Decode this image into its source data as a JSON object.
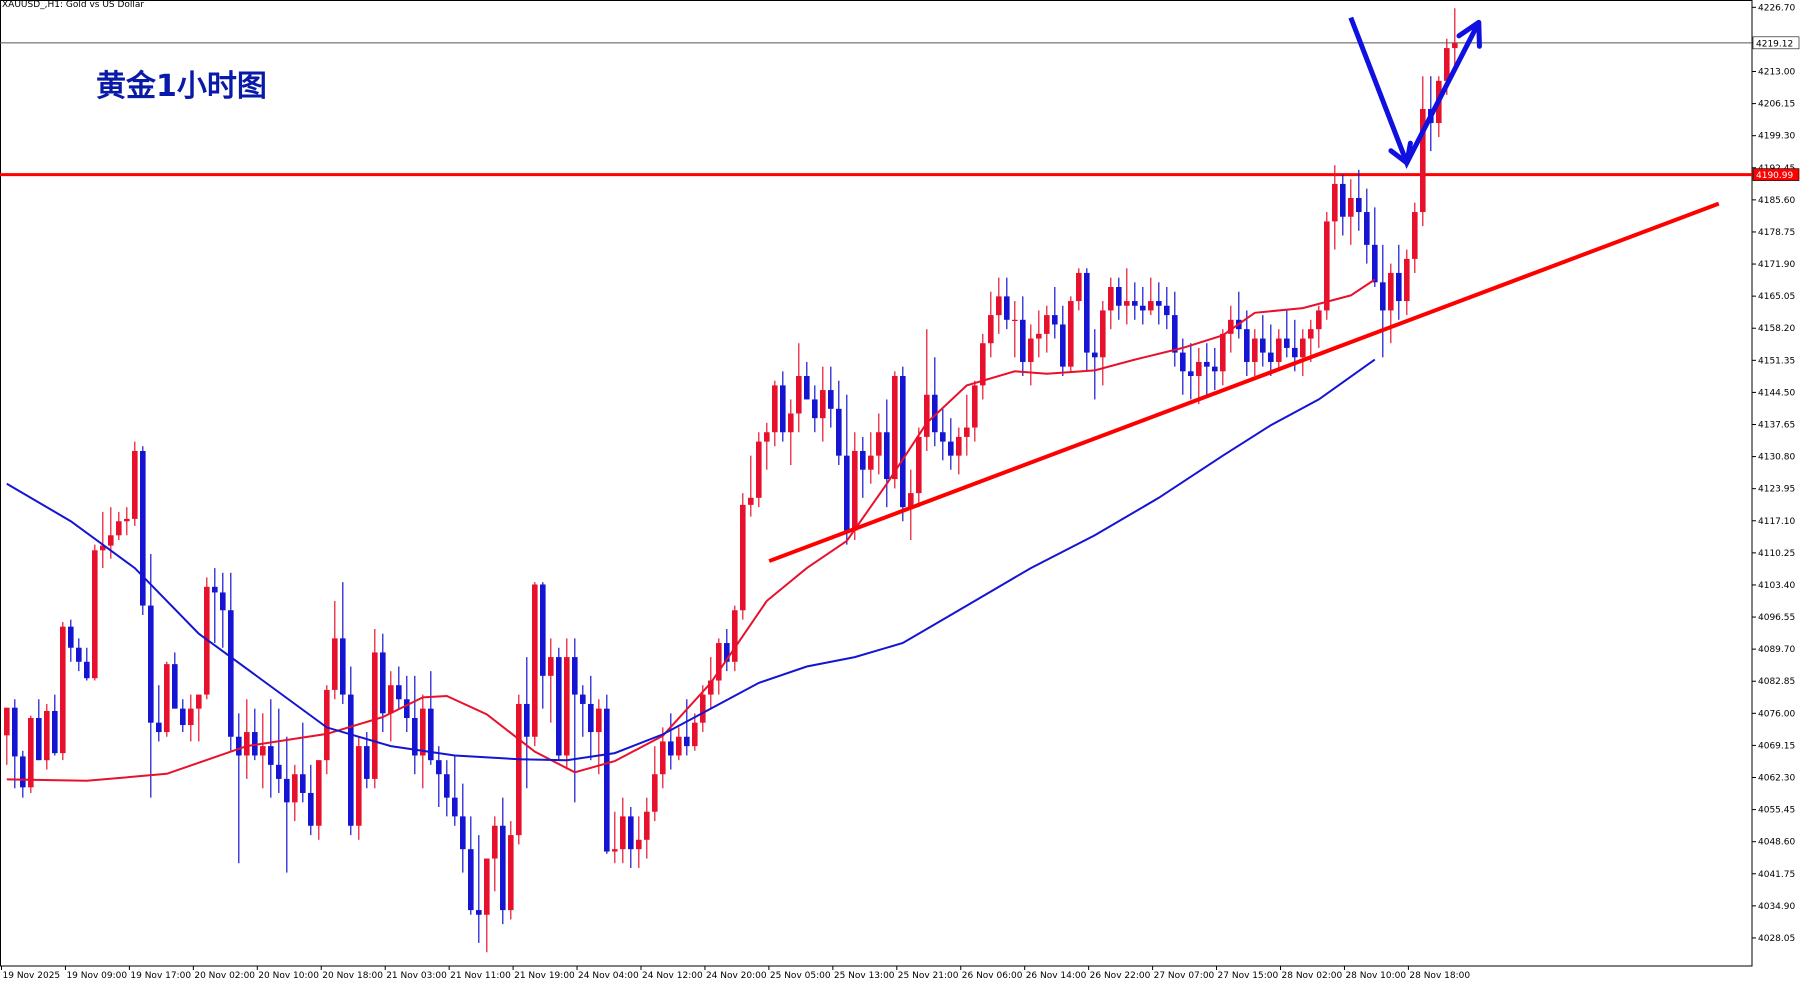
{
  "header": {
    "symbol": "XAUUSD_",
    "timeframe": "H1",
    "description": "XAUUSD_,H1:  Gold vs US Dollar"
  },
  "annotation_title": "黄金1小时图",
  "colors": {
    "bull_candle": "#e8112d",
    "bear_candle": "#1414d2",
    "ma_fast": "#e8112d",
    "ma_slow": "#1414d2",
    "resistance_line": "#ff0000",
    "trend_line": "#ff0000",
    "arrow": "#1010e0",
    "title": "#0a1aa8",
    "crosshair": "#555555"
  },
  "chart_data": {
    "type": "candlestick",
    "symbol": "XAUUSD_",
    "timeframe": "H1",
    "ylim": [
      4024.0,
      4227.4
    ],
    "y_ticks": [
      "4226.70",
      "4219.12",
      "4213.00",
      "4206.15",
      "4199.30",
      "4192.45",
      "4185.60",
      "4178.75",
      "4171.90",
      "4165.05",
      "4158.20",
      "4151.35",
      "4144.50",
      "4137.65",
      "4130.80",
      "4123.95",
      "4117.10",
      "4110.25",
      "4103.40",
      "4096.55",
      "4089.70",
      "4082.85",
      "4076.00",
      "4069.15",
      "4062.30",
      "4055.45",
      "4048.60",
      "4041.75",
      "4034.90",
      "4028.05"
    ],
    "x_ticks": [
      "19 Nov 2025",
      "19 Nov 09:00",
      "19 Nov 17:00",
      "20 Nov 02:00",
      "20 Nov 10:00",
      "20 Nov 18:00",
      "21 Nov 03:00",
      "21 Nov 11:00",
      "21 Nov 19:00",
      "24 Nov 04:00",
      "24 Nov 12:00",
      "24 Nov 20:00",
      "25 Nov 05:00",
      "25 Nov 13:00",
      "25 Nov 21:00",
      "26 Nov 06:00",
      "26 Nov 14:00",
      "26 Nov 22:00",
      "27 Nov 07:00",
      "27 Nov 15:00",
      "28 Nov 02:00",
      "28 Nov 10:00",
      "28 Nov 18:00"
    ],
    "current_price": {
      "value": 4219.12,
      "label": "4219.12"
    },
    "resistance_level": {
      "value": 4190.99,
      "label": "4190.99"
    },
    "candles": [
      [
        4071.3,
        4077.2,
        4065,
        4077.2
      ],
      [
        4077.2,
        4079,
        4060,
        4066.8
      ],
      [
        4066.8,
        4068,
        4058,
        4060.2
      ],
      [
        4060.2,
        4075.5,
        4059,
        4075
      ],
      [
        4075,
        4079,
        4066,
        4066
      ],
      [
        4066,
        4078,
        4064,
        4076.5
      ],
      [
        4076.5,
        4080,
        4067,
        4067.5
      ],
      [
        4067.5,
        4095.5,
        4066,
        4094.5
      ],
      [
        4094.5,
        4096,
        4087,
        4090
      ],
      [
        4090,
        4092,
        4085,
        4087
      ],
      [
        4087,
        4090,
        4083,
        4083.5
      ],
      [
        4083.5,
        4112,
        4083,
        4110.8
      ],
      [
        4110.8,
        4119,
        4107,
        4111.8
      ],
      [
        4111.8,
        4120,
        4109,
        4114
      ],
      [
        4114,
        4119,
        4113,
        4117
      ],
      [
        4117,
        4120,
        4114,
        4117.5
      ],
      [
        4117.5,
        4134,
        4116,
        4132
      ],
      [
        4132,
        4133,
        4097,
        4099
      ],
      [
        4099,
        4110,
        4058,
        4074
      ],
      [
        4074,
        4082,
        4070,
        4072
      ],
      [
        4072,
        4087,
        4071,
        4086.5
      ],
      [
        4086.5,
        4089,
        4077,
        4077
      ],
      [
        4077,
        4079,
        4072,
        4073.5
      ],
      [
        4073.5,
        4080,
        4070,
        4077
      ],
      [
        4077,
        4080,
        4070,
        4080
      ],
      [
        4080,
        4105,
        4079,
        4103
      ],
      [
        4103,
        4107,
        4091,
        4101.8
      ],
      [
        4101.8,
        4106,
        4090,
        4098
      ],
      [
        4098,
        4106,
        4068,
        4071
      ],
      [
        4071,
        4076,
        4044,
        4067
      ],
      [
        4067,
        4079,
        4062,
        4072
      ],
      [
        4072,
        4077,
        4066,
        4067
      ],
      [
        4067,
        4076,
        4060,
        4069
      ],
      [
        4069,
        4079,
        4058,
        4065
      ],
      [
        4065,
        4077,
        4059,
        4062
      ],
      [
        4062,
        4071,
        4042,
        4057
      ],
      [
        4057,
        4065,
        4053,
        4063
      ],
      [
        4063,
        4074,
        4057,
        4059
      ],
      [
        4059,
        4065,
        4050,
        4052
      ],
      [
        4052,
        4066,
        4049,
        4066
      ],
      [
        4066,
        4082,
        4063,
        4081
      ],
      [
        4081,
        4100,
        4079,
        4092
      ],
      [
        4092,
        4104,
        4078,
        4080
      ],
      [
        4080,
        4086,
        4050,
        4052
      ],
      [
        4052,
        4071,
        4049,
        4069
      ],
      [
        4069,
        4072,
        4060,
        4062
      ],
      [
        4062,
        4094,
        4060,
        4089
      ],
      [
        4089,
        4093,
        4072,
        4076
      ],
      [
        4076,
        4085,
        4070,
        4082
      ],
      [
        4082,
        4086,
        4077,
        4079
      ],
      [
        4079,
        4084,
        4072,
        4075
      ],
      [
        4075,
        4084,
        4063,
        4067
      ],
      [
        4067,
        4080,
        4060,
        4077
      ],
      [
        4077,
        4085,
        4065,
        4066
      ],
      [
        4066,
        4069,
        4056,
        4063
      ],
      [
        4063,
        4066,
        4054,
        4058
      ],
      [
        4058,
        4067,
        4052,
        4054
      ],
      [
        4054,
        4061,
        4042,
        4047
      ],
      [
        4047,
        4054,
        4033,
        4034
      ],
      [
        4034,
        4050,
        4027,
        4033
      ],
      [
        4033,
        4045,
        4025,
        4045
      ],
      [
        4045,
        4054,
        4038,
        4052
      ],
      [
        4052,
        4058,
        4031,
        4034
      ],
      [
        4034,
        4053,
        4032,
        4050
      ],
      [
        4050,
        4080,
        4048,
        4078
      ],
      [
        4078,
        4088,
        4060,
        4071
      ],
      [
        4071,
        4104,
        4069,
        4103.5
      ],
      [
        4103.5,
        4104,
        4077,
        4084
      ],
      [
        4084,
        4092,
        4074,
        4088
      ],
      [
        4088,
        4090,
        4066,
        4067
      ],
      [
        4067,
        4092,
        4064,
        4088
      ],
      [
        4088,
        4092,
        4057,
        4080
      ],
      [
        4080,
        4082,
        4071,
        4078
      ],
      [
        4078,
        4084,
        4066,
        4072
      ],
      [
        4072,
        4079,
        4063,
        4077
      ],
      [
        4077,
        4080,
        4046,
        4046.5
      ],
      [
        4046.5,
        4055,
        4044,
        4047
      ],
      [
        4047,
        4058,
        4044,
        4054
      ],
      [
        4054,
        4056,
        4043,
        4047
      ],
      [
        4047,
        4054,
        4043,
        4049
      ],
      [
        4049,
        4058,
        4045,
        4055
      ],
      [
        4055,
        4069,
        4053,
        4063
      ],
      [
        4063,
        4073,
        4060,
        4070
      ],
      [
        4070,
        4076,
        4064,
        4067
      ],
      [
        4067,
        4073,
        4066,
        4071
      ],
      [
        4071,
        4079,
        4067,
        4069
      ],
      [
        4069,
        4076,
        4068,
        4074
      ],
      [
        4074,
        4082,
        4072,
        4080
      ],
      [
        4080,
        4088,
        4077,
        4083
      ],
      [
        4083,
        4092,
        4080,
        4091
      ],
      [
        4091,
        4094,
        4085,
        4087
      ],
      [
        4087,
        4099,
        4085,
        4098
      ],
      [
        4098,
        4123,
        4096,
        4120.5
      ],
      [
        4120.5,
        4131,
        4118,
        4122
      ],
      [
        4122,
        4136,
        4120,
        4134
      ],
      [
        4134,
        4138,
        4128,
        4136
      ],
      [
        4136,
        4147,
        4133,
        4146
      ],
      [
        4146,
        4149,
        4134,
        4136
      ],
      [
        4136,
        4143,
        4129,
        4140
      ],
      [
        4140,
        4155,
        4136,
        4148
      ],
      [
        4148,
        4151,
        4143,
        4143
      ],
      [
        4143,
        4146,
        4136,
        4139
      ],
      [
        4139,
        4150,
        4134,
        4145
      ],
      [
        4145,
        4150,
        4137,
        4141
      ],
      [
        4141,
        4147,
        4129,
        4131
      ],
      [
        4131,
        4144,
        4112,
        4115
      ],
      [
        4115,
        4136,
        4113,
        4132
      ],
      [
        4132,
        4135,
        4122,
        4128
      ],
      [
        4128,
        4136,
        4125,
        4131
      ],
      [
        4131,
        4140,
        4127,
        4136
      ],
      [
        4136,
        4143,
        4120,
        4126
      ],
      [
        4126,
        4149,
        4124,
        4148
      ],
      [
        4148,
        4150,
        4117,
        4120
      ],
      [
        4120,
        4128,
        4113,
        4123
      ],
      [
        4123,
        4137,
        4120,
        4135
      ],
      [
        4135,
        4158,
        4132,
        4144
      ],
      [
        4144,
        4152,
        4133,
        4136
      ],
      [
        4136,
        4141,
        4130,
        4134
      ],
      [
        4134,
        4139,
        4128,
        4131
      ],
      [
        4131,
        4137,
        4127,
        4135
      ],
      [
        4135,
        4144,
        4131,
        4137
      ],
      [
        4137,
        4147,
        4134,
        4146
      ],
      [
        4146,
        4157,
        4143,
        4155
      ],
      [
        4155,
        4166,
        4152,
        4161
      ],
      [
        4161,
        4169,
        4157,
        4165
      ],
      [
        4165,
        4169,
        4158,
        4160
      ],
      [
        4160,
        4164,
        4152,
        4160
      ],
      [
        4160,
        4165,
        4148,
        4151
      ],
      [
        4151,
        4159,
        4146,
        4156
      ],
      [
        4156,
        4162,
        4152,
        4157
      ],
      [
        4157,
        4163,
        4153,
        4161
      ],
      [
        4161,
        4167,
        4156,
        4159
      ],
      [
        4159,
        4163,
        4148,
        4150
      ],
      [
        4150,
        4165,
        4149,
        4164
      ],
      [
        4164,
        4171,
        4162,
        4170
      ],
      [
        4170,
        4171,
        4149,
        4153
      ],
      [
        4153,
        4158,
        4143,
        4152
      ],
      [
        4152,
        4164,
        4146,
        4162
      ],
      [
        4162,
        4169,
        4158,
        4167
      ],
      [
        4167,
        4169,
        4160,
        4163
      ],
      [
        4163,
        4171,
        4159,
        4164
      ],
      [
        4164,
        4168,
        4160,
        4163
      ],
      [
        4163,
        4167,
        4159,
        4162
      ],
      [
        4162,
        4169,
        4161,
        4164
      ],
      [
        4164,
        4168,
        4159,
        4163
      ],
      [
        4163,
        4167,
        4158,
        4161
      ],
      [
        4161,
        4166,
        4150,
        4153
      ],
      [
        4153,
        4156,
        4144,
        4149
      ],
      [
        4149,
        4155,
        4143,
        4148
      ],
      [
        4148,
        4154,
        4142,
        4151
      ],
      [
        4151,
        4155,
        4144,
        4150
      ],
      [
        4150,
        4154,
        4145,
        4149
      ],
      [
        4149,
        4158,
        4146,
        4157
      ],
      [
        4157,
        4163,
        4153,
        4160
      ],
      [
        4160,
        4166,
        4156,
        4158
      ],
      [
        4158,
        4162,
        4148,
        4151
      ],
      [
        4151,
        4158,
        4148,
        4156
      ],
      [
        4156,
        4161,
        4150,
        4153
      ],
      [
        4153,
        4159,
        4148,
        4151
      ],
      [
        4151,
        4158,
        4149,
        4156
      ],
      [
        4156,
        4162,
        4152,
        4154
      ],
      [
        4154,
        4160,
        4149,
        4152
      ],
      [
        4152,
        4158,
        4148,
        4156
      ],
      [
        4156,
        4160,
        4151,
        4158
      ],
      [
        4158,
        4163,
        4154,
        4162
      ],
      [
        4162,
        4183,
        4160,
        4181
      ],
      [
        4181,
        4193,
        4175,
        4189
      ],
      [
        4189,
        4191,
        4178,
        4182
      ],
      [
        4182,
        4190,
        4176,
        4186
      ],
      [
        4186,
        4192,
        4179,
        4183
      ],
      [
        4183,
        4188,
        4172,
        4176
      ],
      [
        4176,
        4184,
        4167,
        4168
      ],
      [
        4168,
        4176,
        4152,
        4162
      ],
      [
        4162,
        4172,
        4155,
        4170
      ],
      [
        4170,
        4176,
        4160,
        4164
      ],
      [
        4164,
        4175,
        4161,
        4173
      ],
      [
        4173,
        4185,
        4170,
        4183
      ],
      [
        4183,
        4212,
        4180,
        4205
      ],
      [
        4205,
        4212,
        4196,
        4202
      ],
      [
        4202,
        4212,
        4199,
        4211
      ],
      [
        4211,
        4220,
        4208,
        4218
      ],
      [
        4218,
        4226.5,
        4214,
        4219.12
      ]
    ],
    "series": [
      {
        "name": "",
        "color": "#e8112d",
        "points": [
          [
            0,
            4061.9
          ],
          [
            10,
            4061.6
          ],
          [
            20,
            4063.1
          ],
          [
            30,
            4069.0
          ],
          [
            40,
            4071.6
          ],
          [
            47,
            4075.2
          ],
          [
            52,
            4079.4
          ],
          [
            55,
            4079.7
          ],
          [
            60,
            4075.8
          ],
          [
            66,
            4067.8
          ],
          [
            71,
            4063.4
          ],
          [
            76,
            4065.8
          ],
          [
            82,
            4071.2
          ],
          [
            88,
            4082.5
          ],
          [
            95,
            4100.0
          ],
          [
            100,
            4107.0
          ],
          [
            105,
            4112.8
          ],
          [
            110,
            4125.0
          ],
          [
            115,
            4138.0
          ],
          [
            120,
            4146.0
          ],
          [
            126,
            4149.0
          ],
          [
            130,
            4148.5
          ],
          [
            136,
            4149.2
          ],
          [
            141,
            4151.5
          ],
          [
            147,
            4154.0
          ],
          [
            152,
            4156.7
          ],
          [
            156,
            4161.5
          ],
          [
            162,
            4162.5
          ],
          [
            168,
            4165.2
          ],
          [
            171,
            4168.6
          ]
        ]
      },
      {
        "name": "",
        "color": "#1414d2",
        "points": [
          [
            0,
            4125.0
          ],
          [
            8,
            4117.0
          ],
          [
            16,
            4107.0
          ],
          [
            24,
            4093.0
          ],
          [
            32,
            4083.0
          ],
          [
            40,
            4073.0
          ],
          [
            48,
            4069.0
          ],
          [
            56,
            4067.0
          ],
          [
            64,
            4066.2
          ],
          [
            70,
            4066.0
          ],
          [
            76,
            4067.5
          ],
          [
            82,
            4071.5
          ],
          [
            88,
            4077.0
          ],
          [
            94,
            4082.5
          ],
          [
            100,
            4086.0
          ],
          [
            106,
            4088.0
          ],
          [
            112,
            4091.0
          ],
          [
            120,
            4099.0
          ],
          [
            128,
            4107.0
          ],
          [
            136,
            4114.0
          ],
          [
            144,
            4122.0
          ],
          [
            152,
            4131.0
          ],
          [
            158,
            4137.5
          ],
          [
            164,
            4143.0
          ],
          [
            171,
            4151.5
          ]
        ]
      }
    ],
    "annotations": [
      {
        "type": "horizontal_line",
        "value": 4190.99,
        "color": "#ff0000"
      },
      {
        "type": "trend_line",
        "from": [
          95.3,
          4108.5
        ],
        "to": [
          214,
          4184.8
        ],
        "color": "#ff0000"
      },
      {
        "type": "arrow_path",
        "points": [
          [
            168,
            4224.5
          ],
          [
            175,
            4193.5
          ],
          [
            184,
            4223.5
          ]
        ],
        "color": "#1010e0"
      }
    ]
  }
}
